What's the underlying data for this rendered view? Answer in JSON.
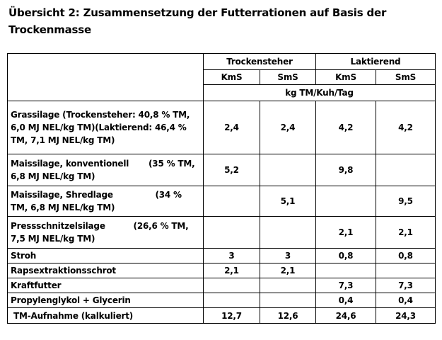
{
  "title": "Übersicht 2: Zusammensetzung der Futterrationen auf Basis der Trockenmasse",
  "header": {
    "group_1": "Trockensteher",
    "group_2": "Laktierend",
    "col_kms_1": "KmS",
    "col_sms_1": "SmS",
    "col_kms_2": "KmS",
    "col_sms_2": "SmS",
    "unit": "kg TM/Kuh/Tag"
  },
  "rows": [
    {
      "label_line1": "Grassilage (Trockensteher: 40,8 % TM,",
      "label_line2": "6,0 MJ NEL/kg TM)(Laktierend: 46,4 %",
      "label_line3": "TM, 7,1 MJ NEL/kg TM)",
      "values": [
        "2,4",
        "2,4",
        "4,2",
        "4,2"
      ]
    },
    {
      "label_line1": "Maissilage, konventionell       (35 % TM,",
      "label_line2": "6,8 MJ NEL/kg TM)",
      "values": [
        "5,2",
        "",
        "9,8",
        ""
      ]
    },
    {
      "label_line1": "Maissilage, Shredlage               (34 %",
      "label_line2": "TM, 6,8 MJ NEL/kg TM)",
      "values": [
        "",
        "5,1",
        "",
        "9,5"
      ]
    },
    {
      "label_line1": "Pressschnitzelsilage          (26,6 % TM,",
      "label_line2": "7,5 MJ NEL/kg TM)",
      "values": [
        "",
        "",
        "2,1",
        "2,1"
      ]
    },
    {
      "label_line1": "Stroh",
      "values": [
        "3",
        "3",
        "0,8",
        "0,8"
      ]
    },
    {
      "label_line1": "Rapsextraktionsschrot",
      "values": [
        "2,1",
        "2,1",
        "",
        ""
      ]
    },
    {
      "label_line1": "Kraftfutter",
      "values": [
        "",
        "",
        "7,3",
        "7,3"
      ]
    },
    {
      "label_line1": "Propylenglykol + Glycerin",
      "values": [
        "",
        "",
        "0,4",
        "0,4"
      ]
    },
    {
      "label_line1": " TM-Aufnahme (kalkuliert)",
      "values": [
        "12,7",
        "12,6",
        "24,6",
        "24,3"
      ]
    }
  ]
}
